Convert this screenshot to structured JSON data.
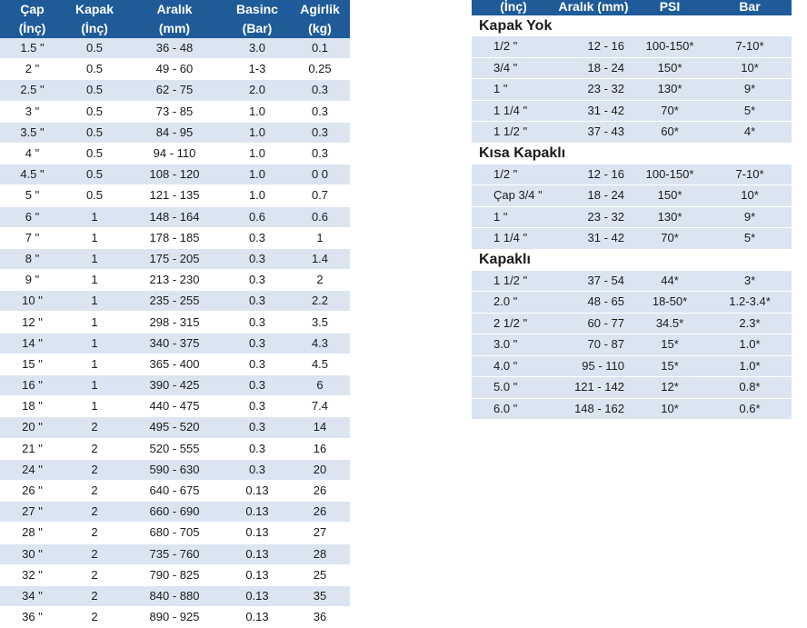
{
  "left_table": {
    "headers": [
      [
        "Çap",
        "(İnç)"
      ],
      [
        "Kapak",
        "(İnç)"
      ],
      [
        "Aralık",
        "(mm)"
      ],
      [
        "Basinc",
        "(Bar)"
      ],
      [
        "Agirlik",
        "(kg)"
      ]
    ],
    "rows": [
      [
        "1.5 \"",
        "0.5",
        "36 - 48",
        "3.0",
        "0.1"
      ],
      [
        "2 \"",
        "0.5",
        "49 - 60",
        "1-3",
        "0.25"
      ],
      [
        "2.5 \"",
        "0.5",
        "62 - 75",
        "2.0",
        "0.3"
      ],
      [
        "3 \"",
        "0.5",
        "73 - 85",
        "1.0",
        "0.3"
      ],
      [
        "3.5 \"",
        "0.5",
        "84 - 95",
        "1.0",
        "0.3"
      ],
      [
        "4 \"",
        "0.5",
        "94 - 110",
        "1.0",
        "0.3"
      ],
      [
        "4.5 \"",
        "0.5",
        "108 - 120",
        "1.0",
        "0 0"
      ],
      [
        "5 \"",
        "0.5",
        "121 - 135",
        "1.0",
        "0.7"
      ],
      [
        "6 \"",
        "1",
        "148 - 164",
        "0.6",
        "0.6"
      ],
      [
        "7 \"",
        "1",
        "178 - 185",
        "0.3",
        "1"
      ],
      [
        "8 \"",
        "1",
        "175 - 205",
        "0.3",
        "1.4"
      ],
      [
        "9 \"",
        "1",
        "213 - 230",
        "0.3",
        "2"
      ],
      [
        "10 \"",
        "1",
        "235 - 255",
        "0.3",
        "2.2"
      ],
      [
        "12 \"",
        "1",
        "298 - 315",
        "0.3",
        "3.5"
      ],
      [
        "14 \"",
        "1",
        "340 - 375",
        "0.3",
        "4.3"
      ],
      [
        "15 \"",
        "1",
        "365 - 400",
        "0.3",
        "4.5"
      ],
      [
        "16 \"",
        "1",
        "390 - 425",
        "0.3",
        "6"
      ],
      [
        "18 \"",
        "1",
        "440 - 475",
        "0.3",
        "7.4"
      ],
      [
        "20 \"",
        "2",
        "495 - 520",
        "0.3",
        "14"
      ],
      [
        "21 \"",
        "2",
        "520 - 555",
        "0.3",
        "16"
      ],
      [
        "24 \"",
        "2",
        "590 - 630",
        "0.3",
        "20"
      ],
      [
        "26 \"",
        "2",
        "640 - 675",
        "0.13",
        "26"
      ],
      [
        "27 \"",
        "2",
        "660 - 690",
        "0.13",
        "26"
      ],
      [
        "28 \"",
        "2",
        "680 - 705",
        "0.13",
        "27"
      ],
      [
        "30 \"",
        "2",
        "735 - 760",
        "0.13",
        "28"
      ],
      [
        "32 \"",
        "2",
        "790 - 825",
        "0.13",
        "25"
      ],
      [
        "34 \"",
        "2",
        "840 - 880",
        "0.13",
        "35"
      ],
      [
        "36 \"",
        "2",
        "890 - 925",
        "0.13",
        "36"
      ]
    ]
  },
  "right_table": {
    "headers": [
      "(İnç)",
      "Aralık (mm)",
      "PSI",
      "Bar"
    ],
    "sections": [
      {
        "title": "Kapak Yok",
        "rows": [
          [
            "1/2 \"",
            "12 - 16",
            "100-150*",
            "7-10*"
          ],
          [
            "3/4 \"",
            "18 - 24",
            "150*",
            "10*"
          ],
          [
            "1 \"",
            "23 - 32",
            "130*",
            "9*"
          ],
          [
            "1 1/4 \"",
            "31 - 42",
            "70*",
            "5*"
          ],
          [
            "1 1/2 \"",
            "37 - 43",
            "60*",
            "4*"
          ]
        ]
      },
      {
        "title": "Kısa Kapaklı",
        "rows": [
          [
            "1/2 \"",
            "12 - 16",
            "100-150*",
            "7-10*"
          ],
          [
            "Çap 3/4 \"",
            "18 - 24",
            "150*",
            "10*"
          ],
          [
            "1 \"",
            "23 - 32",
            "130*",
            "9*"
          ],
          [
            "1 1/4 \"",
            "31 - 42",
            "70*",
            "5*"
          ]
        ]
      },
      {
        "title": "Kapaklı",
        "rows": [
          [
            "1 1/2 \"",
            "37 - 54",
            "44*",
            "3*"
          ],
          [
            "2.0 \"",
            "48 - 65",
            "18-50*",
            "1.2-3.4*"
          ],
          [
            "2 1/2 \"",
            "60 - 77",
            "34.5*",
            "2.3*"
          ],
          [
            "3.0 \"",
            "70 - 87",
            "15*",
            "1.0*"
          ],
          [
            "4.0 \"",
            "95 - 110",
            "15*",
            "1.0*"
          ],
          [
            "5.0 \"",
            "121 - 142",
            "12*",
            "0.8*"
          ],
          [
            "6.0 \"",
            "148 - 162",
            "10*",
            "0.6*"
          ]
        ]
      }
    ]
  },
  "colors": {
    "header_bg": "#1f5b99",
    "header_text": "#ffffff",
    "stripe": "#dbe5f1"
  }
}
